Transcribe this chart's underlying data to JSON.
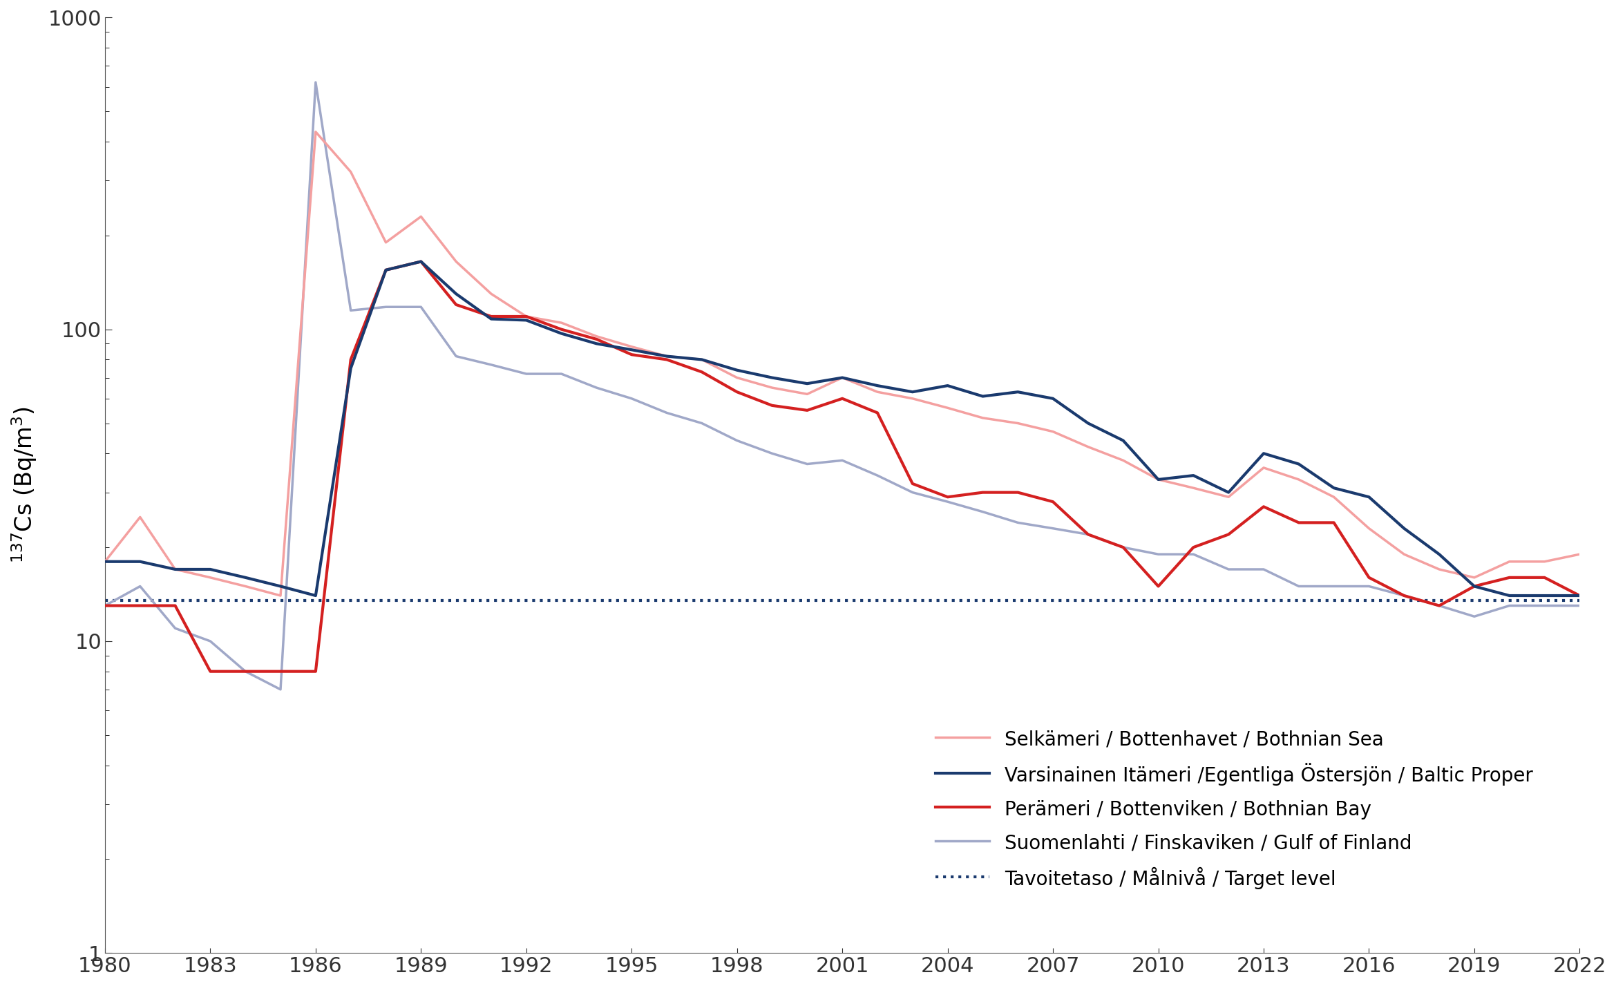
{
  "ylabel": "$^{137}$Cs (Bq/m$^{3}$)",
  "ylim": [
    1,
    1000
  ],
  "xlim": [
    1980,
    2022
  ],
  "target_level": 13.5,
  "series": {
    "bothnian_sea": {
      "label": "Selkämeri / Bottenhavet / Bothnian Sea",
      "color": "#f4a0a0",
      "linewidth": 2.5,
      "zorder": 3,
      "data": {
        "1980": 18,
        "1981": 25,
        "1982": 17,
        "1983": 16,
        "1984": 15,
        "1985": 14,
        "1986": 430,
        "1987": 320,
        "1988": 190,
        "1989": 230,
        "1990": 165,
        "1991": 130,
        "1992": 110,
        "1993": 105,
        "1994": 95,
        "1995": 88,
        "1996": 82,
        "1997": 80,
        "1998": 70,
        "1999": 65,
        "2000": 62,
        "2001": 70,
        "2002": 63,
        "2003": 60,
        "2004": 56,
        "2005": 52,
        "2006": 50,
        "2007": 47,
        "2008": 42,
        "2009": 38,
        "2010": 33,
        "2011": 31,
        "2012": 29,
        "2013": 36,
        "2014": 33,
        "2015": 29,
        "2016": 23,
        "2017": 19,
        "2018": 17,
        "2019": 16,
        "2020": 18,
        "2021": 18,
        "2022": 19
      }
    },
    "baltic_proper": {
      "label": "Varsinainen Itämeri /Egentliga Östersjön / Baltic Proper",
      "color": "#1a3a6e",
      "linewidth": 3.0,
      "zorder": 5,
      "data": {
        "1980": 18,
        "1981": 18,
        "1982": 17,
        "1983": 17,
        "1984": 16,
        "1985": 15,
        "1986": 14,
        "1987": 75,
        "1988": 155,
        "1989": 165,
        "1990": 130,
        "1991": 108,
        "1992": 107,
        "1993": 97,
        "1994": 90,
        "1995": 86,
        "1996": 82,
        "1997": 80,
        "1998": 74,
        "1999": 70,
        "2000": 67,
        "2001": 70,
        "2002": 66,
        "2003": 63,
        "2004": 66,
        "2005": 61,
        "2006": 63,
        "2007": 60,
        "2008": 50,
        "2009": 44,
        "2010": 33,
        "2011": 34,
        "2012": 30,
        "2013": 40,
        "2014": 37,
        "2015": 31,
        "2016": 29,
        "2017": 23,
        "2018": 19,
        "2019": 15,
        "2020": 14,
        "2021": 14,
        "2022": 14
      }
    },
    "bothnian_bay": {
      "label": "Perämeri / Bottenviken / Bothnian Bay",
      "color": "#d42020",
      "linewidth": 3.0,
      "zorder": 4,
      "data": {
        "1980": 13,
        "1981": 13,
        "1982": 13,
        "1983": 8,
        "1984": 8,
        "1985": 8,
        "1986": 8,
        "1987": 80,
        "1988": 155,
        "1989": 165,
        "1990": 120,
        "1991": 110,
        "1992": 110,
        "1993": 100,
        "1994": 93,
        "1995": 83,
        "1996": 80,
        "1997": 73,
        "1998": 63,
        "1999": 57,
        "2000": 55,
        "2001": 60,
        "2002": 54,
        "2003": 32,
        "2004": 29,
        "2005": 30,
        "2006": 30,
        "2007": 28,
        "2008": 22,
        "2009": 20,
        "2010": 15,
        "2011": 20,
        "2012": 22,
        "2013": 27,
        "2014": 24,
        "2015": 24,
        "2016": 16,
        "2017": 14,
        "2018": 13,
        "2019": 15,
        "2020": 16,
        "2021": 16,
        "2022": 14
      }
    },
    "gulf_of_finland": {
      "label": "Suomenlahti / Finskaviken / Gulf of Finland",
      "color": "#a0a8c8",
      "linewidth": 2.5,
      "zorder": 2,
      "data": {
        "1980": 13,
        "1981": 15,
        "1982": 11,
        "1983": 10,
        "1984": 8,
        "1985": 7,
        "1986": 620,
        "1987": 115,
        "1988": 118,
        "1989": 118,
        "1990": 82,
        "1991": 77,
        "1992": 72,
        "1993": 72,
        "1994": 65,
        "1995": 60,
        "1996": 54,
        "1997": 50,
        "1998": 44,
        "1999": 40,
        "2000": 37,
        "2001": 38,
        "2002": 34,
        "2003": 30,
        "2004": 28,
        "2005": 26,
        "2006": 24,
        "2007": 23,
        "2008": 22,
        "2009": 20,
        "2010": 19,
        "2011": 19,
        "2012": 17,
        "2013": 17,
        "2014": 15,
        "2015": 15,
        "2016": 15,
        "2017": 14,
        "2018": 13,
        "2019": 12,
        "2020": 13,
        "2021": 13,
        "2022": 13
      }
    }
  },
  "legend_order": [
    "bothnian_sea",
    "baltic_proper",
    "bothnian_bay",
    "gulf_of_finland"
  ],
  "tick_fontsize": 22,
  "ylabel_fontsize": 24,
  "legend_fontsize": 20,
  "background_color": "#ffffff",
  "xticks": [
    1980,
    1983,
    1986,
    1989,
    1992,
    1995,
    1998,
    2001,
    2004,
    2007,
    2010,
    2013,
    2016,
    2019,
    2022
  ],
  "yticks_major": [
    1,
    10,
    100,
    1000
  ],
  "ytick_labels": [
    "1",
    "10",
    "100",
    "1000"
  ],
  "target_label": "Tavoitetaso / Målnivå / Target level",
  "target_color": "#1a3a6e",
  "target_linestyle": "dotted",
  "target_linewidth": 3.0
}
